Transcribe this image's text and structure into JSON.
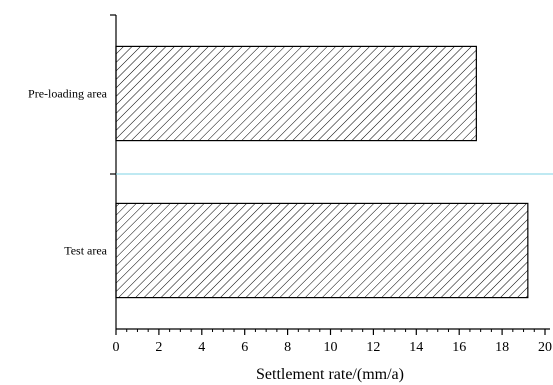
{
  "chart_data": {
    "type": "bar",
    "orientation": "horizontal",
    "categories": [
      "Pre-loading area",
      "Test area"
    ],
    "values": [
      16.8,
      19.2
    ],
    "title": "",
    "xlabel": "Settlement rate/(mm/a)",
    "ylabel": "",
    "xlim": [
      0,
      20
    ],
    "x_ticks": [
      "0",
      "2",
      "4",
      "6",
      "8",
      "10",
      "12",
      "14",
      "16",
      "18",
      "20"
    ],
    "bar_fill": "diagonal-hatch",
    "grid": false,
    "colors": {
      "bar_stroke": "#000000",
      "hatch": "#000000",
      "reference_line": "#7fd3e6"
    }
  }
}
